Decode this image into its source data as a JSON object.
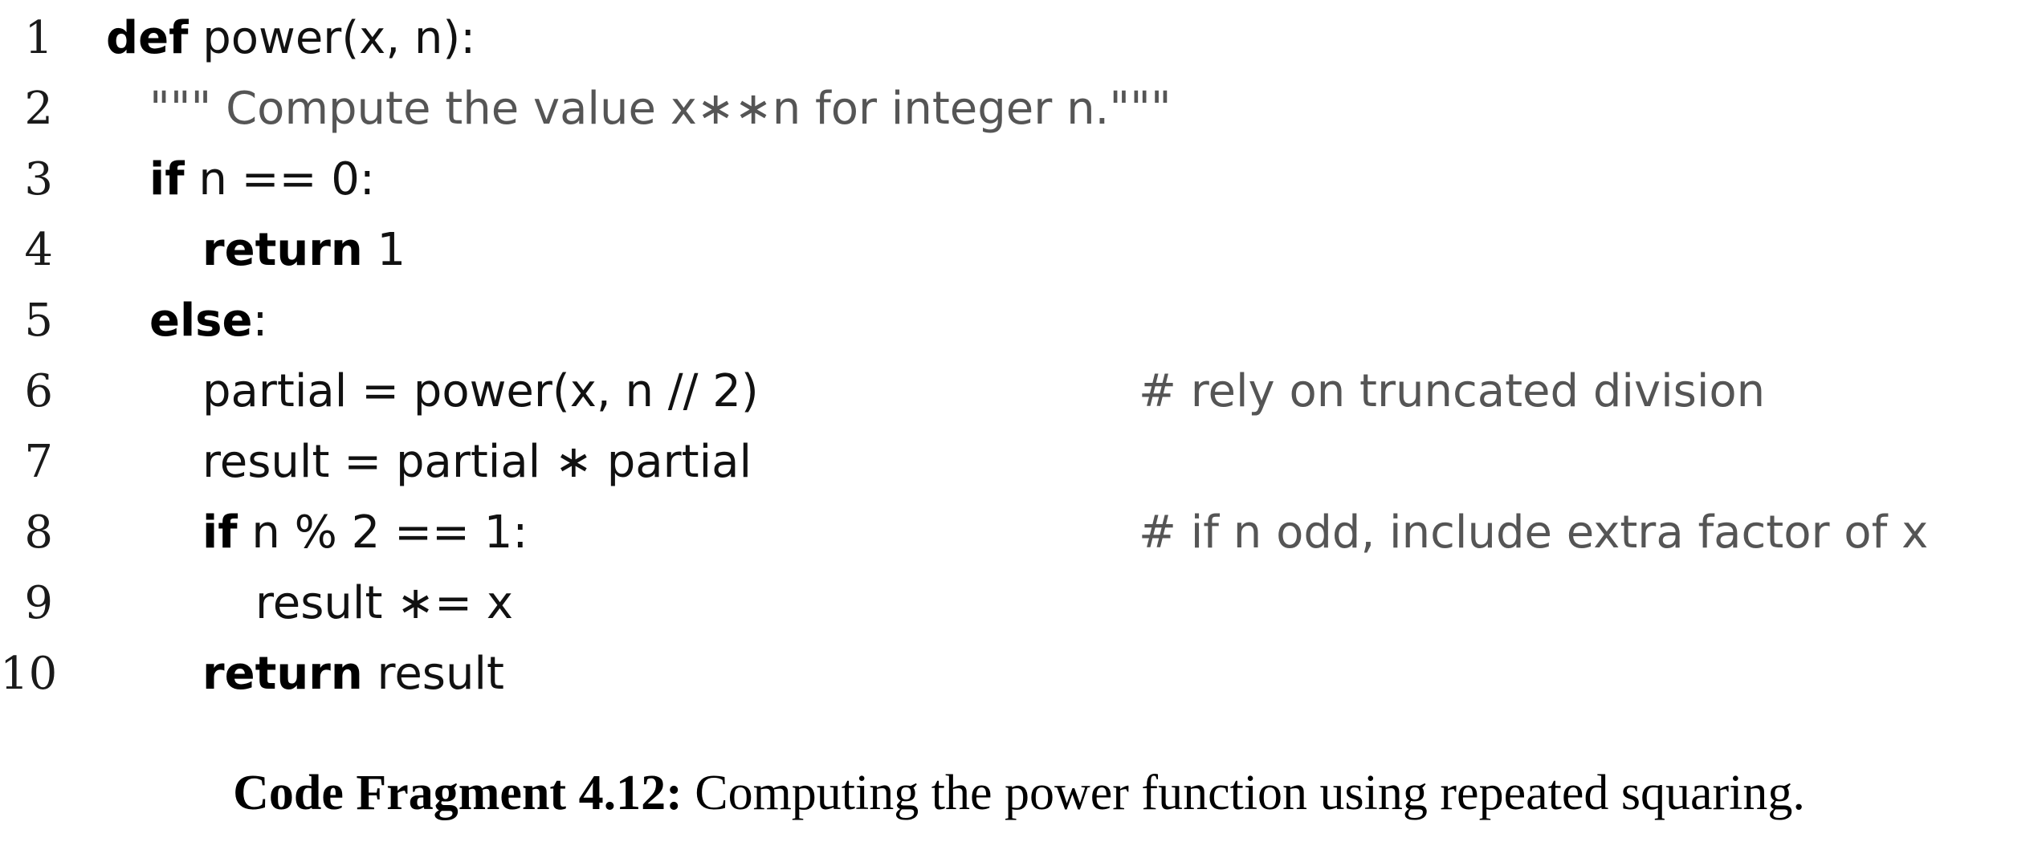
{
  "code_lines": [
    {
      "number": "1",
      "kw": "def",
      "text": " power(x, n):",
      "comment": ""
    },
    {
      "number": "2",
      "kw": "",
      "text": "",
      "docstring": "\"\"\" Compute the value x∗∗n for integer n.\"\"\"",
      "comment": ""
    },
    {
      "number": "3",
      "kw": "if",
      "text": " n == 0:",
      "comment": ""
    },
    {
      "number": "4",
      "kw": "return",
      "text": " 1",
      "comment": ""
    },
    {
      "number": "5",
      "kw": "else",
      "text": ":",
      "comment": ""
    },
    {
      "number": "6",
      "kw": "",
      "text": "partial = power(x, n // 2)",
      "comment": "# rely on truncated division"
    },
    {
      "number": "7",
      "kw": "",
      "text": "result = partial ∗ partial",
      "comment": ""
    },
    {
      "number": "8",
      "kw": "if",
      "text": " n % 2 == 1:",
      "comment": "# if n odd, include extra factor of x"
    },
    {
      "number": "9",
      "kw": "",
      "text": "result ∗= x",
      "comment": ""
    },
    {
      "number": "10",
      "kw": "return",
      "text": " result",
      "comment": ""
    }
  ],
  "caption": {
    "label": "Code Fragment 4.12:",
    "text": " Computing the power function using repeated squaring."
  }
}
